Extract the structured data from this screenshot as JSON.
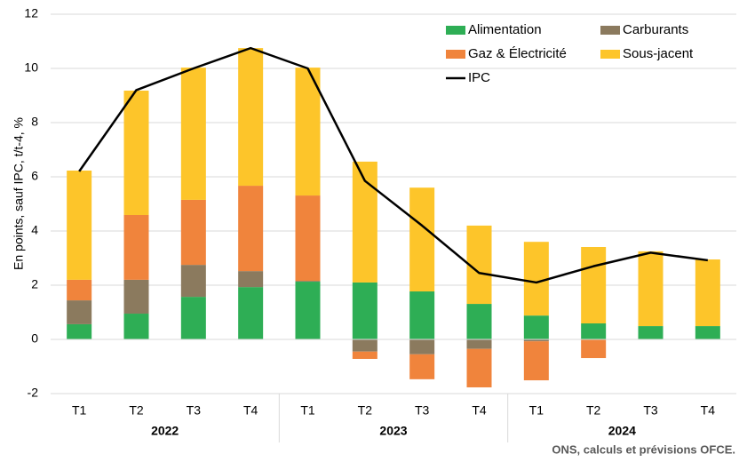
{
  "chart_data": {
    "type": "stacked-bar-line",
    "y_label": "En points, sauf IPC, t/t-4, %",
    "source": "ONS, calculs et prévisions OFCE.",
    "categories": [
      "T1",
      "T2",
      "T3",
      "T4",
      "T1",
      "T2",
      "T3",
      "T4",
      "T1",
      "T2",
      "T3",
      "T4"
    ],
    "groups": [
      "2022",
      "2023",
      "2024"
    ],
    "ylim": [
      -2,
      12
    ],
    "yticks": [
      -2,
      0,
      2,
      4,
      6,
      8,
      10,
      12
    ],
    "grid": true,
    "legend": "top-right",
    "series": [
      {
        "name": "Alimentation",
        "type": "bar",
        "color": "#2eae55",
        "values": [
          0.56,
          0.95,
          1.57,
          1.93,
          2.13,
          2.1,
          1.77,
          1.31,
          0.88,
          0.59,
          0.49,
          0.49
        ]
      },
      {
        "name": "Carburants",
        "type": "bar",
        "color": "#8b7a5e",
        "values": [
          0.88,
          1.25,
          1.18,
          0.59,
          0.03,
          -0.45,
          -0.55,
          -0.35,
          -0.07,
          0,
          0,
          0
        ]
      },
      {
        "name": "Gaz & Électricité",
        "type": "bar",
        "color": "#f0843c",
        "values": [
          0.76,
          2.39,
          2.4,
          3.15,
          3.15,
          -0.27,
          -0.92,
          -1.42,
          -1.44,
          -0.69,
          0,
          0
        ]
      },
      {
        "name": "Sous-jacent",
        "type": "bar",
        "color": "#fdc52a",
        "values": [
          4.03,
          4.59,
          4.88,
          5.08,
          4.72,
          4.46,
          3.83,
          2.89,
          2.72,
          2.82,
          2.76,
          2.46
        ]
      },
      {
        "name": "IPC",
        "type": "line",
        "color": "#000000",
        "values": [
          6.2,
          9.2,
          10.0,
          10.75,
          10.0,
          5.85,
          4.2,
          2.45,
          2.1,
          2.7,
          3.2,
          2.92
        ]
      }
    ]
  }
}
